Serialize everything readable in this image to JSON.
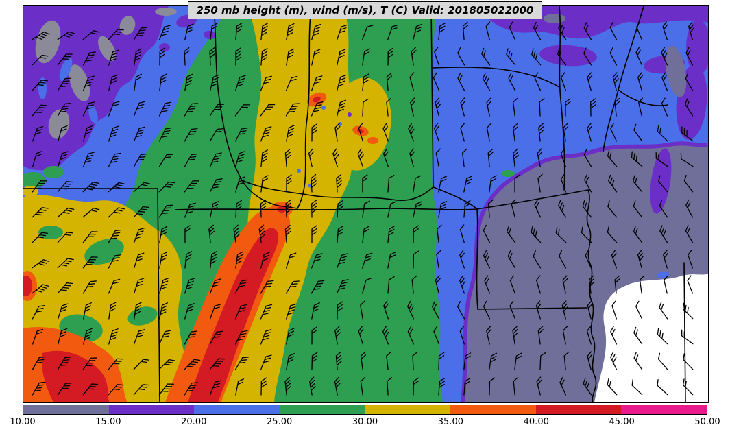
{
  "title_bar": {
    "text": "250 mb height (m), wind (m/s), T (C) Valid: 201805022000"
  },
  "chart_data": {
    "type": "heatmap",
    "title": "250 mb height (m), wind (m/s), T (C)",
    "valid_time": "201805022000",
    "shaded_variable": "wind speed (m/s)",
    "overlays": [
      "wind barbs",
      "state boundaries",
      "Mississippi River"
    ],
    "legend_position": "bottom horizontal colorbar",
    "colorbar": {
      "min": 10,
      "max": 50,
      "interval": 5,
      "tick_labels": [
        "10.00",
        "15.00",
        "20.00",
        "25.00",
        "30.00",
        "35.00",
        "40.00",
        "45.00",
        "50.00"
      ],
      "segment_ranges": [
        [
          10,
          15
        ],
        [
          15,
          20
        ],
        [
          20,
          25
        ],
        [
          25,
          30
        ],
        [
          30,
          35
        ],
        [
          35,
          40
        ],
        [
          40,
          45
        ],
        [
          45,
          50
        ]
      ],
      "segment_colors": [
        "#6f6f99",
        "#6b2fc7",
        "#4a6fe8",
        "#2e9e50",
        "#d4b400",
        "#f25a10",
        "#d41b24",
        "#e91a8c"
      ]
    }
  },
  "colors": {
    "slate": "#6f6f99",
    "purple": "#6b2fc7",
    "blue": "#4a6fe8",
    "green": "#2e9e50",
    "yellow": "#d4b400",
    "orange": "#f25a10",
    "red": "#d41b24",
    "magenta": "#e91a8c",
    "gray": "#8a8a99",
    "white": "#ffffff",
    "title_bg": "#d9d9d9"
  }
}
